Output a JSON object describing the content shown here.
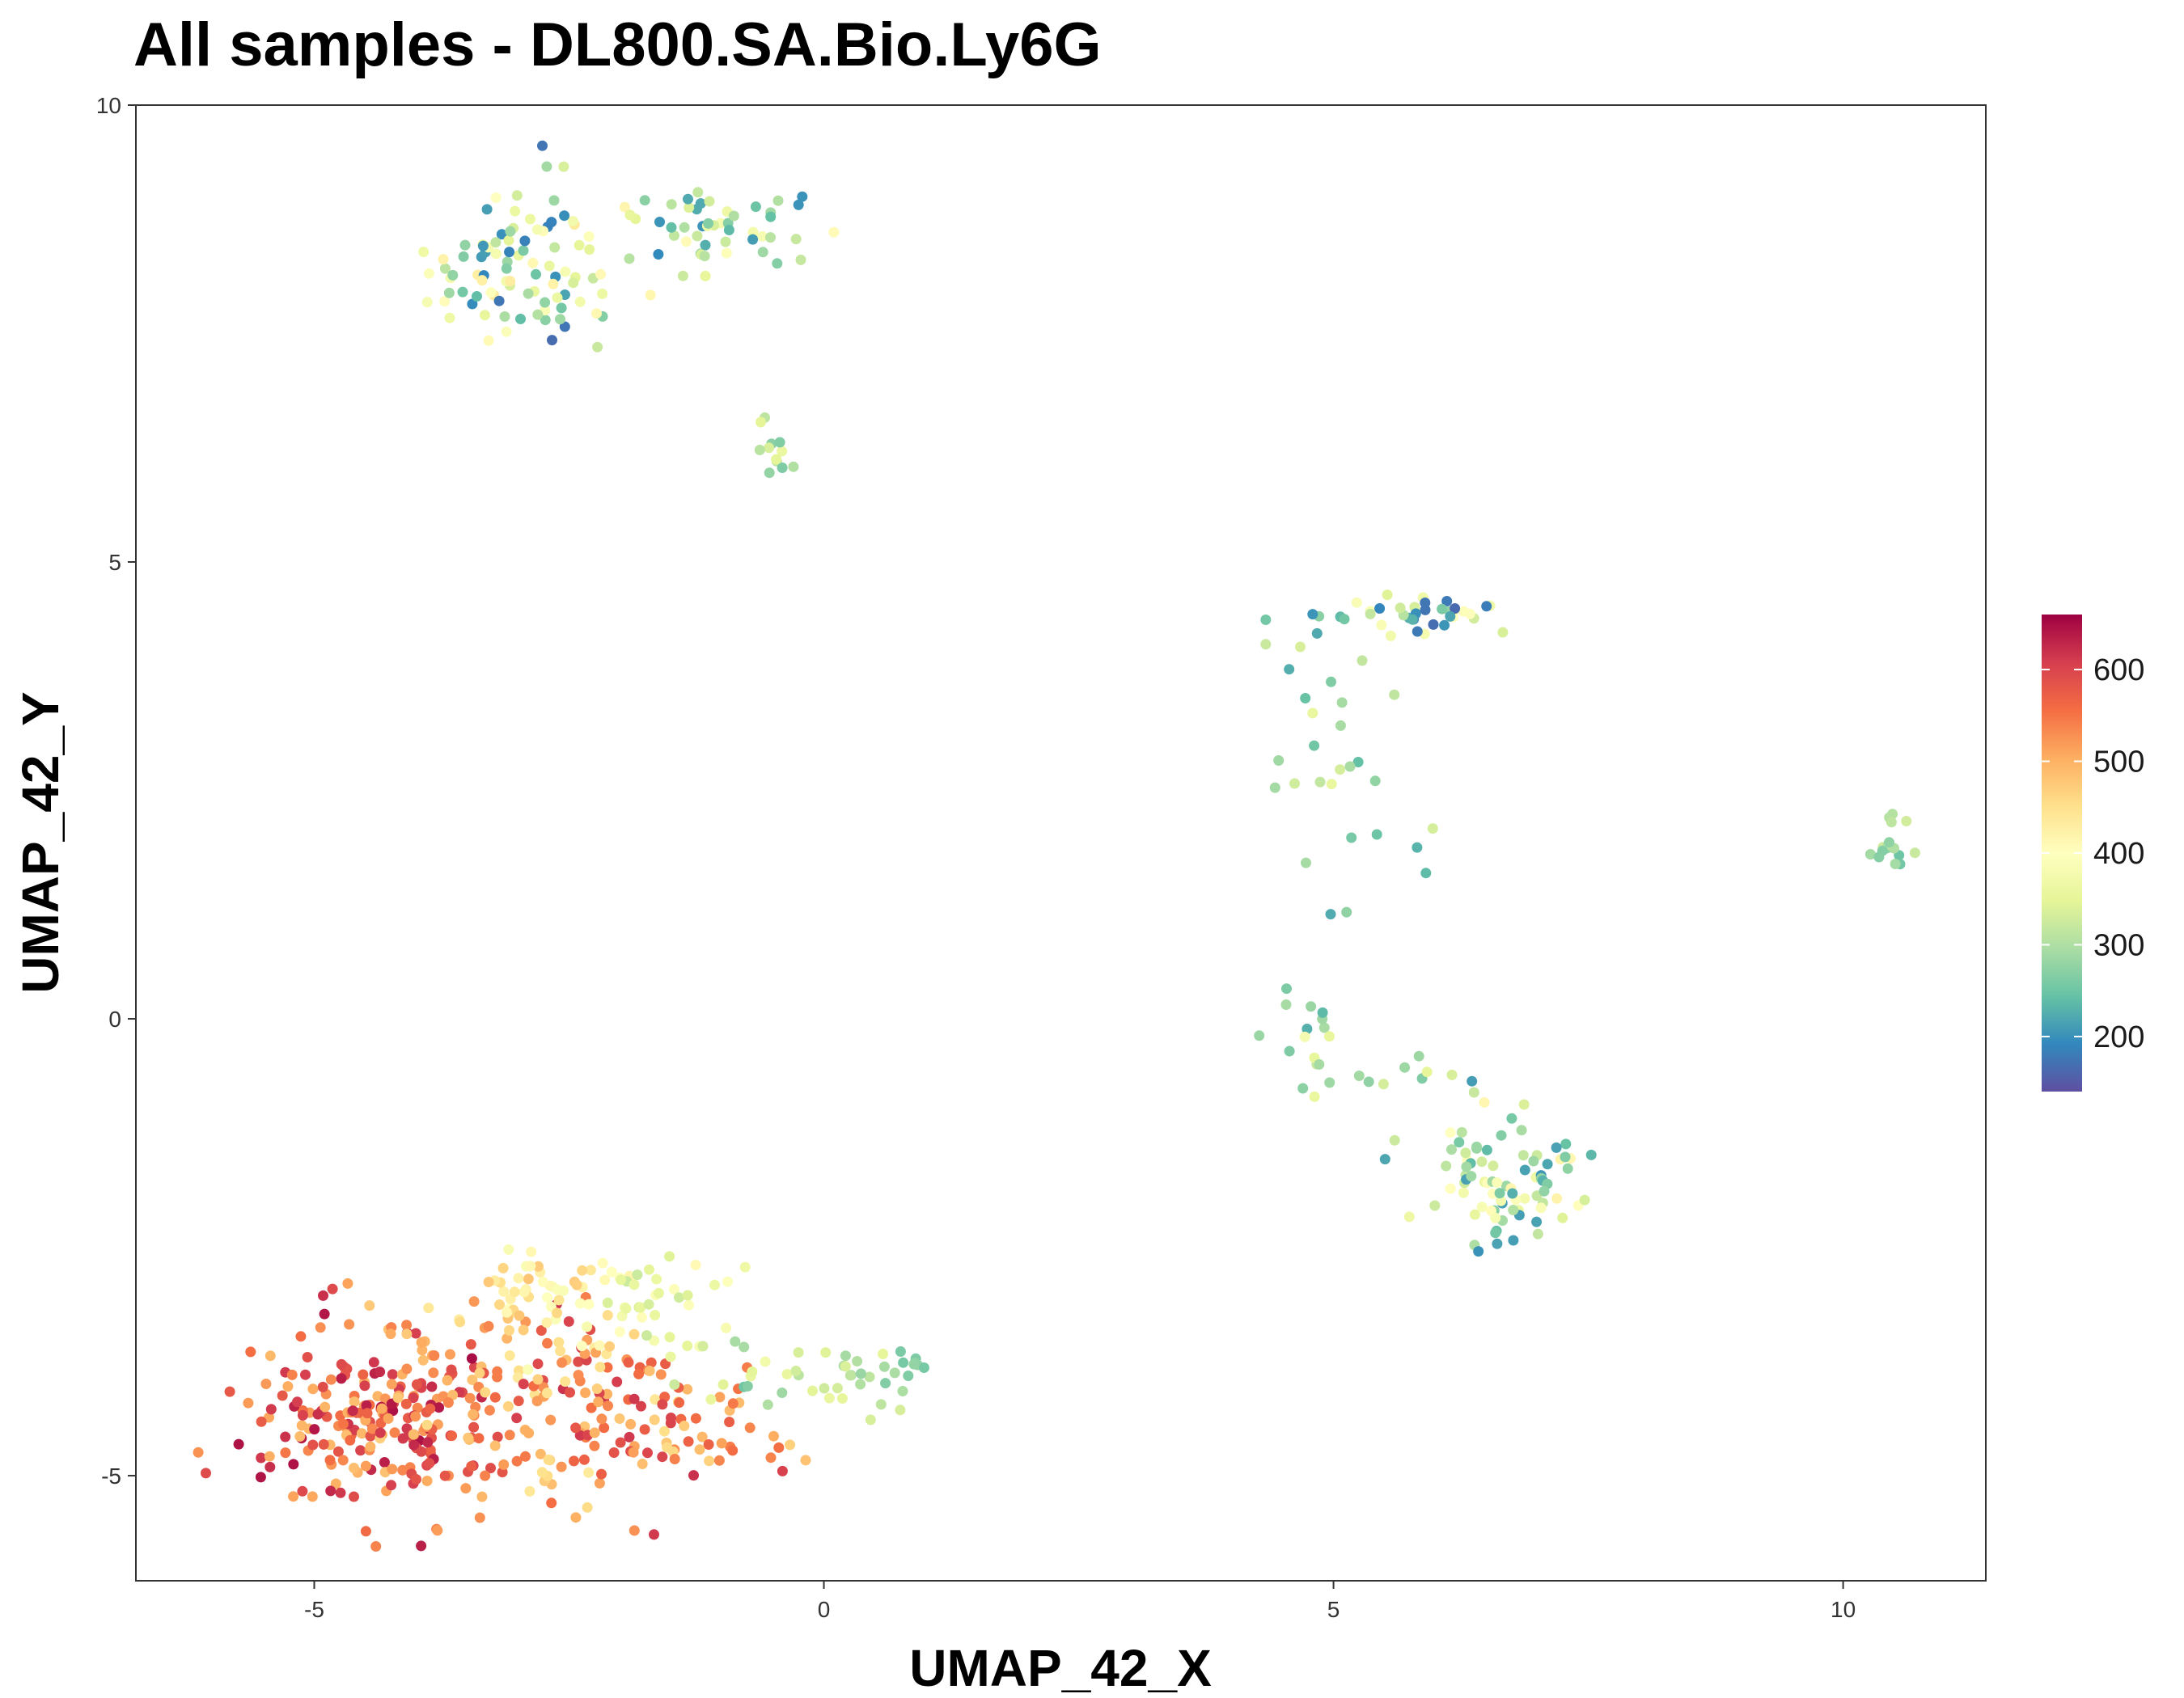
{
  "chart_data": {
    "type": "scatter",
    "title": "All samples - DL800.SA.Bio.Ly6G",
    "xlabel": "UMAP_42_X",
    "ylabel": "UMAP_42_Y",
    "xlim": [
      -6.75,
      11.4
    ],
    "ylim": [
      -6.15,
      10.0
    ],
    "x_ticks": [
      -5,
      0,
      5,
      10
    ],
    "x_tick_labels": [
      "-5",
      "0",
      "5",
      "10"
    ],
    "y_ticks": [
      -5,
      0,
      5,
      10
    ],
    "y_tick_labels": [
      "-5",
      "0",
      "5",
      "10"
    ],
    "grid": false,
    "colorbar": {
      "min": 140,
      "max": 660,
      "ticks": [
        200,
        300,
        400,
        500,
        600
      ],
      "tick_labels": [
        "200",
        "300",
        "400",
        "500",
        "600"
      ],
      "palette": [
        "#5E4FA2",
        "#3288BD",
        "#66C2A5",
        "#ABDDA4",
        "#E6F598",
        "#FFFFBF",
        "#FEE08B",
        "#FDAE61",
        "#F46D43",
        "#D53E4F",
        "#9E0142"
      ],
      "placement": "right"
    },
    "clusters": [
      {
        "name": "",
        "cx": -2.95,
        "cy": 8.25,
        "sx": 0.45,
        "sy": 0.45,
        "n": 95,
        "v": [
          160,
          440
        ]
      },
      {
        "name": "",
        "cx": -1.0,
        "cy": 8.7,
        "sx": 0.55,
        "sy": 0.28,
        "n": 50,
        "v": [
          180,
          420
        ]
      },
      {
        "name": "",
        "cx": -0.45,
        "cy": 6.25,
        "sx": 0.12,
        "sy": 0.25,
        "n": 12,
        "v": [
          260,
          360
        ]
      },
      {
        "name": "",
        "cx": 5.7,
        "cy": 4.45,
        "sx": 0.55,
        "sy": 0.1,
        "n": 40,
        "v": [
          150,
          400
        ]
      },
      {
        "name": "",
        "cx": 5.05,
        "cy": 2.8,
        "sx": 0.35,
        "sy": 0.75,
        "n": 28,
        "v": [
          220,
          360
        ]
      },
      {
        "name": "",
        "cx": 10.45,
        "cy": 1.85,
        "sx": 0.1,
        "sy": 0.15,
        "n": 16,
        "v": [
          230,
          330
        ]
      },
      {
        "name": "",
        "cx": 4.85,
        "cy": 0.05,
        "sx": 0.2,
        "sy": 0.35,
        "n": 14,
        "v": [
          220,
          400
        ]
      },
      {
        "name": "",
        "cx": 5.7,
        "cy": -0.6,
        "sx": 0.45,
        "sy": 0.12,
        "n": 12,
        "v": [
          260,
          370
        ]
      },
      {
        "name": "",
        "cx": 6.75,
        "cy": -1.8,
        "sx": 0.4,
        "sy": 0.32,
        "n": 85,
        "v": [
          200,
          420
        ]
      },
      {
        "name": "",
        "cx": -4.4,
        "cy": -4.4,
        "sx": 0.65,
        "sy": 0.5,
        "n": 230,
        "v": [
          480,
          650
        ]
      },
      {
        "name": "",
        "cx": -2.5,
        "cy": -4.2,
        "sx": 0.9,
        "sy": 0.55,
        "n": 160,
        "v": [
          430,
          620
        ]
      },
      {
        "name": "",
        "cx": -2.8,
        "cy": -3.05,
        "sx": 0.6,
        "sy": 0.3,
        "n": 60,
        "v": [
          380,
          480
        ]
      },
      {
        "name": "",
        "cx": -1.6,
        "cy": -3.1,
        "sx": 0.4,
        "sy": 0.3,
        "n": 35,
        "v": [
          320,
          410
        ]
      },
      {
        "name": "",
        "cx": -0.2,
        "cy": -3.9,
        "sx": 0.6,
        "sy": 0.2,
        "n": 40,
        "v": [
          250,
          380
        ]
      },
      {
        "name": "",
        "cx": 0.9,
        "cy": -3.8,
        "sx": 0.12,
        "sy": 0.05,
        "n": 8,
        "v": [
          250,
          300
        ]
      },
      {
        "name": "",
        "cx": -1.0,
        "cy": -4.55,
        "sx": 0.5,
        "sy": 0.2,
        "n": 20,
        "v": [
          450,
          560
        ]
      }
    ]
  }
}
